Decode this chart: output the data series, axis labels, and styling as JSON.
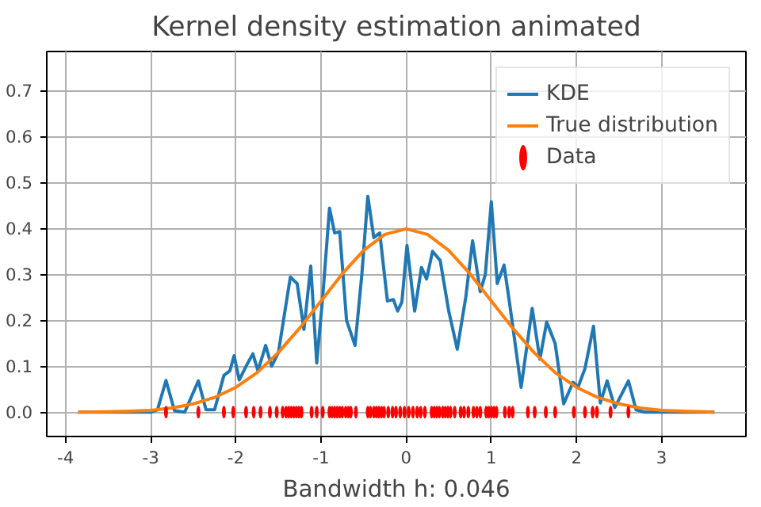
{
  "chart_data": {
    "type": "line",
    "title": "Kernel density estimation animated",
    "xlabel": "Bandwidth h: 0.046",
    "xlim": [
      -4.22,
      3.99
    ],
    "ylim": [
      -0.053,
      0.785
    ],
    "xticks": [
      -4,
      -3,
      -2,
      -1,
      0,
      1,
      2,
      3
    ],
    "yticks": [
      {
        "value": 0.0,
        "label": "0.0"
      },
      0.1,
      0.2,
      0.3,
      0.4,
      0.5,
      0.6,
      0.7
    ],
    "grid": true,
    "legend": "top right",
    "series": [
      {
        "name": "KDE",
        "color": "#1f77b4",
        "x": [
          -3.85,
          -3.0,
          -2.92,
          -2.82,
          -2.72,
          -2.6,
          -2.44,
          -2.35,
          -2.25,
          -2.14,
          -2.07,
          -2.02,
          -1.96,
          -1.88,
          -1.8,
          -1.74,
          -1.65,
          -1.58,
          -1.5,
          -1.36,
          -1.28,
          -1.2,
          -1.12,
          -1.05,
          -0.98,
          -0.9,
          -0.84,
          -0.78,
          -0.7,
          -0.6,
          -0.52,
          -0.45,
          -0.38,
          -0.31,
          -0.22,
          -0.15,
          -0.1,
          -0.05,
          0.01,
          0.1,
          0.18,
          0.24,
          0.31,
          0.4,
          0.5,
          0.6,
          0.7,
          0.78,
          0.87,
          0.93,
          1.0,
          1.07,
          1.15,
          1.22,
          1.35,
          1.48,
          1.57,
          1.65,
          1.75,
          1.85,
          1.96,
          2.02,
          2.1,
          2.2,
          2.28,
          2.36,
          2.45,
          2.61,
          2.7,
          2.8,
          3.62
        ],
        "values": [
          0.0,
          0.0,
          0.005,
          0.069,
          0.003,
          0.0,
          0.068,
          0.005,
          0.005,
          0.08,
          0.09,
          0.123,
          0.07,
          0.1,
          0.127,
          0.09,
          0.145,
          0.1,
          0.13,
          0.294,
          0.28,
          0.18,
          0.318,
          0.107,
          0.25,
          0.444,
          0.39,
          0.393,
          0.2,
          0.145,
          0.3,
          0.47,
          0.38,
          0.39,
          0.242,
          0.245,
          0.22,
          0.24,
          0.363,
          0.22,
          0.315,
          0.29,
          0.35,
          0.33,
          0.22,
          0.137,
          0.25,
          0.373,
          0.262,
          0.3,
          0.458,
          0.28,
          0.32,
          0.23,
          0.054,
          0.226,
          0.115,
          0.196,
          0.149,
          0.018,
          0.065,
          0.055,
          0.095,
          0.187,
          0.02,
          0.068,
          0.01,
          0.068,
          0.005,
          0.0,
          0.0
        ]
      },
      {
        "name": "True distribution",
        "color": "#ff7f0e",
        "x": [
          -3.85,
          -3.5,
          -3.25,
          -3.0,
          -2.75,
          -2.5,
          -2.25,
          -2.0,
          -1.75,
          -1.5,
          -1.25,
          -1.0,
          -0.75,
          -0.5,
          -0.25,
          0.0,
          0.25,
          0.5,
          0.75,
          1.0,
          1.25,
          1.5,
          1.75,
          2.0,
          2.25,
          2.5,
          2.75,
          3.0,
          3.25,
          3.5,
          3.62
        ],
        "values": [
          0.0,
          0.001,
          0.002,
          0.004,
          0.009,
          0.018,
          0.032,
          0.054,
          0.086,
          0.13,
          0.183,
          0.242,
          0.301,
          0.352,
          0.387,
          0.399,
          0.387,
          0.352,
          0.301,
          0.242,
          0.183,
          0.13,
          0.086,
          0.054,
          0.032,
          0.018,
          0.009,
          0.004,
          0.002,
          0.001,
          0.0
        ]
      },
      {
        "name": "Data",
        "color": "#ff0000",
        "type": "scatter",
        "x": [
          -2.82,
          -2.44,
          -2.14,
          -2.03,
          -1.88,
          -1.79,
          -1.71,
          -1.6,
          -1.52,
          -1.45,
          -1.41,
          -1.38,
          -1.35,
          -1.32,
          -1.29,
          -1.26,
          -1.23,
          -1.11,
          -1.05,
          -0.98,
          -0.9,
          -0.87,
          -0.84,
          -0.81,
          -0.78,
          -0.75,
          -0.71,
          -0.68,
          -0.65,
          -0.59,
          -0.45,
          -0.42,
          -0.38,
          -0.35,
          -0.32,
          -0.29,
          -0.26,
          -0.21,
          -0.16,
          -0.12,
          -0.07,
          -0.02,
          0.03,
          0.08,
          0.13,
          0.17,
          0.22,
          0.3,
          0.33,
          0.36,
          0.39,
          0.43,
          0.46,
          0.49,
          0.52,
          0.57,
          0.64,
          0.68,
          0.73,
          0.79,
          0.83,
          0.87,
          0.94,
          0.97,
          1.0,
          1.03,
          1.06,
          1.16,
          1.21,
          1.25,
          1.43,
          1.51,
          1.64,
          1.75,
          1.97,
          2.1,
          2.19,
          2.24,
          2.4,
          2.61
        ],
        "values": [
          0,
          0,
          0,
          0,
          0,
          0,
          0,
          0,
          0,
          0,
          0,
          0,
          0,
          0,
          0,
          0,
          0,
          0,
          0,
          0,
          0,
          0,
          0,
          0,
          0,
          0,
          0,
          0,
          0,
          0,
          0,
          0,
          0,
          0,
          0,
          0,
          0,
          0,
          0,
          0,
          0,
          0,
          0,
          0,
          0,
          0,
          0,
          0,
          0,
          0,
          0,
          0,
          0,
          0,
          0,
          0,
          0,
          0,
          0,
          0,
          0,
          0,
          0,
          0,
          0,
          0,
          0,
          0,
          0,
          0,
          0,
          0,
          0,
          0,
          0,
          0,
          0,
          0,
          0,
          0
        ]
      }
    ]
  }
}
